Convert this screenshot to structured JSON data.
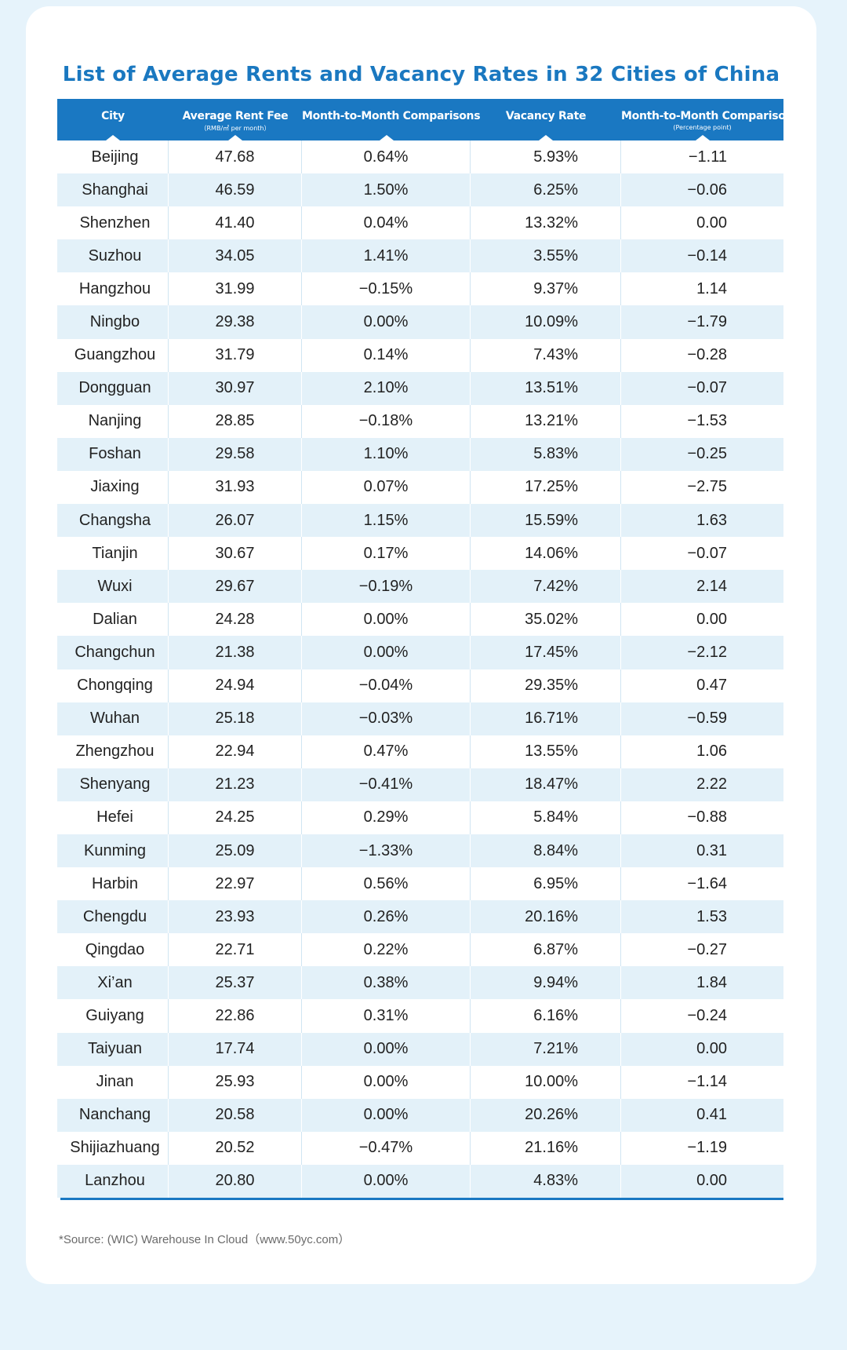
{
  "title": "List of Average Rents and Vacancy Rates in 32 Cities of China",
  "columns": [
    {
      "label": "City",
      "sub": ""
    },
    {
      "label": "Average Rent Fee",
      "sub": "（RMB/㎡ per month）"
    },
    {
      "label": "Month-to-Month Comparisons",
      "sub": ""
    },
    {
      "label": "Vacancy Rate",
      "sub": ""
    },
    {
      "label": "Month-to-Month Comparisons",
      "sub": "(Percentage point)"
    }
  ],
  "rows": [
    [
      "Beijing",
      "47.68",
      "0.64%",
      "5.93%",
      "−1.11"
    ],
    [
      "Shanghai",
      "46.59",
      "1.50%",
      "6.25%",
      "−0.06"
    ],
    [
      "Shenzhen",
      "41.40",
      "0.04%",
      "13.32%",
      "0.00"
    ],
    [
      "Suzhou",
      "34.05",
      "1.41%",
      "3.55%",
      "−0.14"
    ],
    [
      "Hangzhou",
      "31.99",
      "−0.15%",
      "9.37%",
      "1.14"
    ],
    [
      "Ningbo",
      "29.38",
      "0.00%",
      "10.09%",
      "−1.79"
    ],
    [
      "Guangzhou",
      "31.79",
      "0.14%",
      "7.43%",
      "−0.28"
    ],
    [
      "Dongguan",
      "30.97",
      "2.10%",
      "13.51%",
      "−0.07"
    ],
    [
      "Nanjing",
      "28.85",
      "−0.18%",
      "13.21%",
      "−1.53"
    ],
    [
      "Foshan",
      "29.58",
      "1.10%",
      "5.83%",
      "−0.25"
    ],
    [
      "Jiaxing",
      "31.93",
      "0.07%",
      "17.25%",
      "−2.75"
    ],
    [
      "Changsha",
      "26.07",
      "1.15%",
      "15.59%",
      "1.63"
    ],
    [
      "Tianjin",
      "30.67",
      "0.17%",
      "14.06%",
      "−0.07"
    ],
    [
      "Wuxi",
      "29.67",
      "−0.19%",
      "7.42%",
      "2.14"
    ],
    [
      "Dalian",
      "24.28",
      "0.00%",
      "35.02%",
      "0.00"
    ],
    [
      "Changchun",
      "21.38",
      "0.00%",
      "17.45%",
      "−2.12"
    ],
    [
      "Chongqing",
      "24.94",
      "−0.04%",
      "29.35%",
      "0.47"
    ],
    [
      "Wuhan",
      "25.18",
      "−0.03%",
      "16.71%",
      "−0.59"
    ],
    [
      "Zhengzhou",
      "22.94",
      "0.47%",
      "13.55%",
      "1.06"
    ],
    [
      "Shenyang",
      "21.23",
      "−0.41%",
      "18.47%",
      "2.22"
    ],
    [
      "Hefei",
      "24.25",
      "0.29%",
      "5.84%",
      "−0.88"
    ],
    [
      "Kunming",
      "25.09",
      "−1.33%",
      "8.84%",
      "0.31"
    ],
    [
      "Harbin",
      "22.97",
      "0.56%",
      "6.95%",
      "−1.64"
    ],
    [
      "Chengdu",
      "23.93",
      "0.26%",
      "20.16%",
      "1.53"
    ],
    [
      "Qingdao",
      "22.71",
      "0.22%",
      "6.87%",
      "−0.27"
    ],
    [
      "Xi’an",
      "25.37",
      "0.38%",
      "9.94%",
      "1.84"
    ],
    [
      "Guiyang",
      "22.86",
      "0.31%",
      "6.16%",
      "−0.24"
    ],
    [
      "Taiyuan",
      "17.74",
      "0.00%",
      "7.21%",
      "0.00"
    ],
    [
      "Jinan",
      "25.93",
      "0.00%",
      "10.00%",
      "−1.14"
    ],
    [
      "Nanchang",
      "20.58",
      "0.00%",
      "20.26%",
      "0.41"
    ],
    [
      "Shijiazhuang",
      "20.52",
      "−0.47%",
      "21.16%",
      "−1.19"
    ],
    [
      "Lanzhou",
      "20.80",
      "0.00%",
      "4.83%",
      "0.00"
    ]
  ],
  "source": "*Source: (WIC) Warehouse In Cloud（www.50yc.com）",
  "colors": {
    "title": "#1a78c0",
    "header_bg": "#1a78c2",
    "stripe": "#e3f1f9",
    "page_bg": "#e6f3fb"
  }
}
